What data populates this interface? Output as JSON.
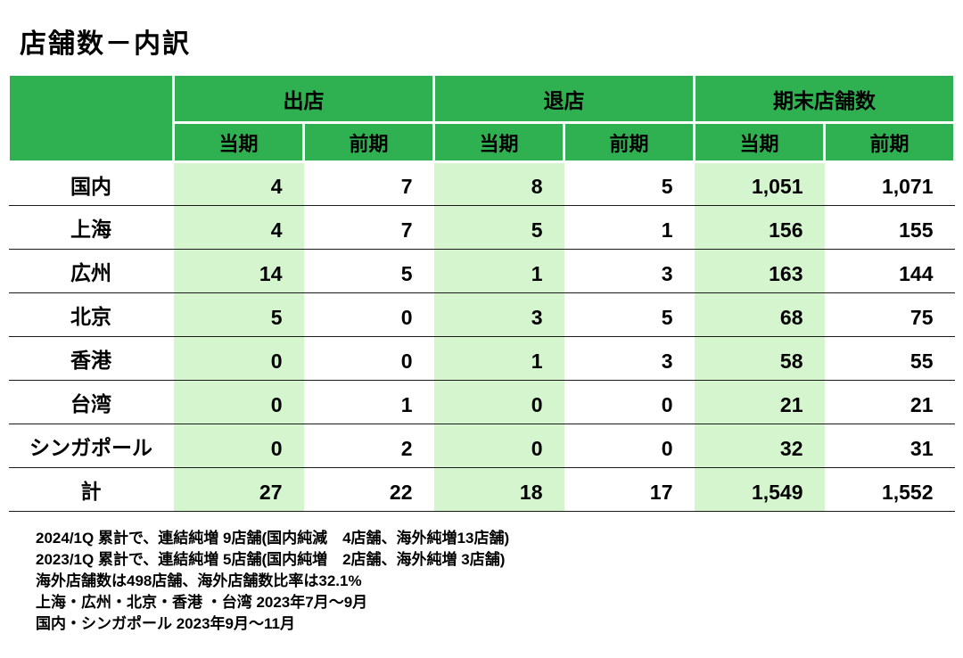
{
  "chart_data": {
    "type": "table",
    "title": "店舗数－内訳",
    "column_groups": [
      "出店",
      "退店",
      "期末店舗数"
    ],
    "sub_headers": [
      "当期",
      "前期",
      "当期",
      "前期",
      "当期",
      "前期"
    ],
    "rows": [
      {
        "label": "国内",
        "values": [
          "4",
          "7",
          "8",
          "5",
          "1,051",
          "1,071"
        ]
      },
      {
        "label": "上海",
        "values": [
          "4",
          "7",
          "5",
          "1",
          "156",
          "155"
        ]
      },
      {
        "label": "広州",
        "values": [
          "14",
          "5",
          "1",
          "3",
          "163",
          "144"
        ]
      },
      {
        "label": "北京",
        "values": [
          "5",
          "0",
          "3",
          "5",
          "68",
          "75"
        ]
      },
      {
        "label": "香港",
        "values": [
          "0",
          "0",
          "1",
          "3",
          "58",
          "55"
        ]
      },
      {
        "label": "台湾",
        "values": [
          "0",
          "1",
          "0",
          "0",
          "21",
          "21"
        ]
      },
      {
        "label": "シンガポール",
        "values": [
          "0",
          "2",
          "0",
          "0",
          "32",
          "31"
        ]
      },
      {
        "label": "計",
        "values": [
          "27",
          "22",
          "18",
          "17",
          "1,549",
          "1,552"
        ]
      }
    ],
    "notes": [
      "2024/1Q 累計で、連結純増 9店舗(国内純減　4店舗、海外純増13店舗)",
      "2023/1Q 累計で、連結純増 5店舗(国内純増　2店舗、海外純増 3店舗)",
      "海外店舗数は498店舗、海外店舗数比率は32.1%",
      "上海・広州・北京・香港 ・台湾 2023年7月～9月",
      "国内・シンガポール 2023年9月～11月"
    ]
  },
  "colors": {
    "header_green": "#2fb151",
    "row_highlight": "#d5f5cf"
  }
}
